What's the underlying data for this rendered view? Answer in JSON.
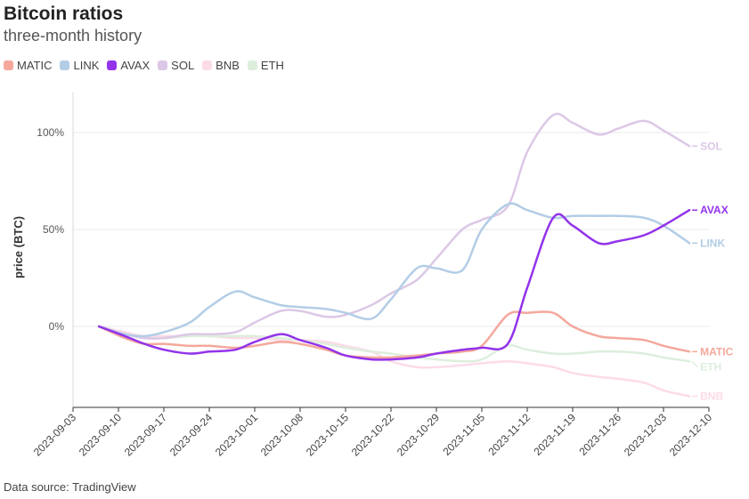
{
  "header": {
    "title": "Bitcoin ratios",
    "subtitle": "three-month history"
  },
  "footer": {
    "source": "Data source: TradingView"
  },
  "chart_data": {
    "type": "line",
    "title": "Bitcoin ratios",
    "subtitle": "three-month history",
    "xlabel": "",
    "ylabel": "price (BTC)",
    "x_ticks": [
      "2023-09-03",
      "2023-09-10",
      "2023-09-17",
      "2023-09-24",
      "2023-10-01",
      "2023-10-08",
      "2023-10-15",
      "2023-10-22",
      "2023-10-29",
      "2023-11-05",
      "2023-11-12",
      "2023-11-19",
      "2023-11-26",
      "2023-12-03",
      "2023-12-10"
    ],
    "y_ticks": [
      "0%",
      "50%",
      "100%"
    ],
    "y_tick_values": [
      0,
      50,
      100
    ],
    "xlim": [
      "2023-09-03",
      "2023-12-10"
    ],
    "ylim": [
      -40,
      120
    ],
    "grid": "horizontal",
    "legend_position": "top-left",
    "x": [
      "2023-09-07",
      "2023-09-11",
      "2023-09-14",
      "2023-09-17",
      "2023-09-21",
      "2023-09-24",
      "2023-09-28",
      "2023-10-01",
      "2023-10-05",
      "2023-10-08",
      "2023-10-12",
      "2023-10-15",
      "2023-10-19",
      "2023-10-22",
      "2023-10-26",
      "2023-10-29",
      "2023-11-02",
      "2023-11-05",
      "2023-11-09",
      "2023-11-12",
      "2023-11-16",
      "2023-11-19",
      "2023-11-23",
      "2023-11-26",
      "2023-11-30",
      "2023-12-03",
      "2023-12-07"
    ],
    "series": [
      {
        "name": "MATIC",
        "color": "#f4a89c",
        "values": [
          0,
          -6,
          -9,
          -9,
          -10,
          -10,
          -11,
          -10,
          -8,
          -9,
          -12,
          -15,
          -16,
          -16,
          -15,
          -14,
          -13,
          -10,
          6,
          7,
          7,
          0,
          -5,
          -6,
          -7,
          -10,
          -13
        ]
      },
      {
        "name": "LINK",
        "color": "#b3cde6",
        "values": [
          0,
          -4,
          -5,
          -3,
          2,
          10,
          18,
          15,
          11,
          10,
          9,
          7,
          4,
          14,
          30,
          30,
          29,
          50,
          63,
          60,
          56,
          57,
          57,
          57,
          56,
          52,
          43
        ]
      },
      {
        "name": "AVAX",
        "color": "#9333ea",
        "values": [
          0,
          -5,
          -9,
          -12,
          -14,
          -13,
          -12,
          -8,
          -4,
          -7,
          -11,
          -15,
          -17,
          -17,
          -16,
          -14,
          -12,
          -11,
          -9,
          20,
          56,
          52,
          43,
          44,
          47,
          52,
          60
        ]
      },
      {
        "name": "SOL",
        "color": "#dcc8e6",
        "values": [
          0,
          -4,
          -6,
          -6,
          -4,
          -4,
          -3,
          2,
          8,
          8,
          5,
          6,
          11,
          17,
          24,
          35,
          50,
          55,
          62,
          90,
          109,
          105,
          99,
          102,
          106,
          101,
          93
        ]
      },
      {
        "name": "BNB",
        "color": "#fcdbe8",
        "values": [
          0,
          -3,
          -5,
          -5,
          -5,
          -5,
          -6,
          -6,
          -7,
          -7,
          -8,
          -10,
          -13,
          -18,
          -21,
          -21,
          -20,
          -19,
          -18,
          -19,
          -21,
          -24,
          -26,
          -27,
          -29,
          -33,
          -36
        ]
      },
      {
        "name": "ETH",
        "color": "#ddeedd",
        "values": [
          0,
          -4,
          -6,
          -6,
          -5,
          -5,
          -5,
          -5,
          -6,
          -7,
          -9,
          -11,
          -13,
          -14,
          -16,
          -17,
          -18,
          -17,
          -10,
          -12,
          -14,
          -14,
          -13,
          -13,
          -14,
          -16,
          -18
        ]
      }
    ]
  }
}
